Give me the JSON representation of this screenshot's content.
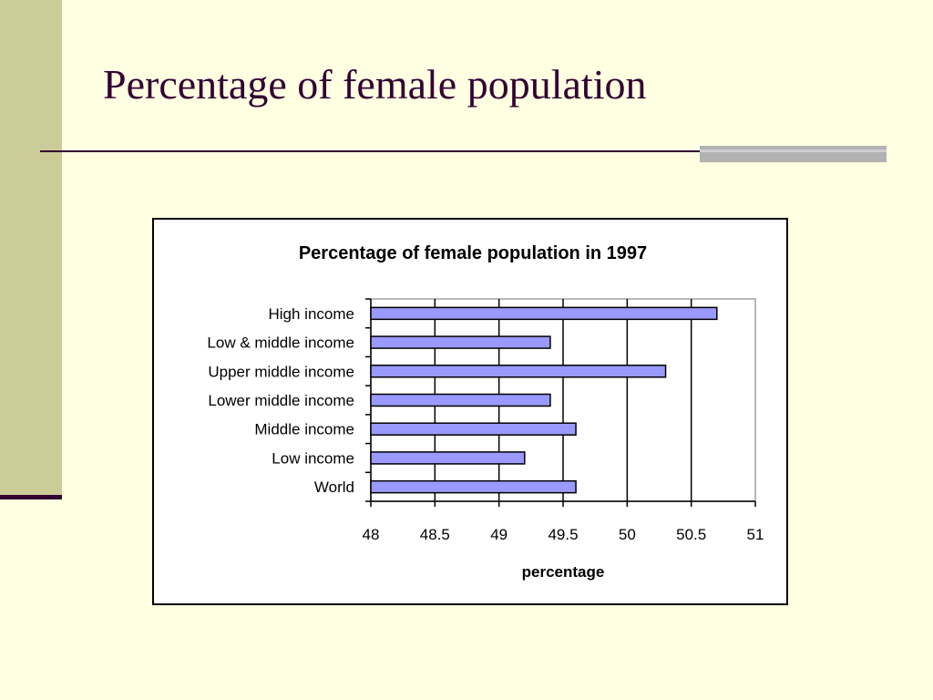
{
  "slide": {
    "title": "Percentage of female population"
  },
  "chart_data": {
    "type": "bar",
    "orientation": "horizontal",
    "title": "Percentage of female population in 1997",
    "xlabel": "percentage",
    "ylabel": "",
    "categories": [
      "High income",
      "Low & middle income",
      "Upper middle income",
      "Lower middle income",
      "Middle income",
      "Low income",
      "World"
    ],
    "values": [
      50.7,
      49.4,
      50.3,
      49.4,
      49.6,
      49.2,
      49.6
    ],
    "xlim": [
      48,
      51
    ],
    "xticks": [
      "48",
      "48.5",
      "49",
      "49.5",
      "50",
      "50.5",
      "51"
    ],
    "grid": true,
    "bar_color": "#9999ff"
  },
  "colors": {
    "background": "#ffffe1",
    "title_text": "#330033",
    "side_bar": "#cccc99",
    "accent_bar": "#b2b2b2"
  }
}
